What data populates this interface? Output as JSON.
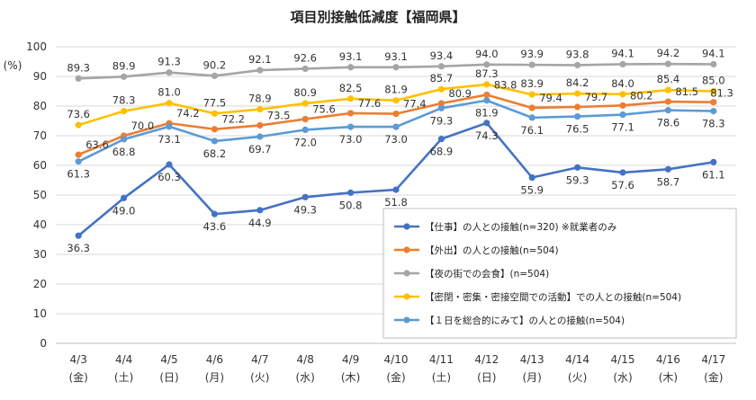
{
  "chart_data": {
    "type": "line",
    "title": "項目別接触低減度【福岡県】",
    "ylabel": "(%)",
    "ylim": [
      0,
      100
    ],
    "yticks": [
      0,
      10,
      20,
      30,
      40,
      50,
      60,
      70,
      80,
      90,
      100
    ],
    "grid": true,
    "legend_position": "right",
    "categories": [
      "4/3",
      "4/4",
      "4/5",
      "4/6",
      "4/7",
      "4/8",
      "4/9",
      "4/10",
      "4/11",
      "4/12",
      "4/13",
      "4/14",
      "4/15",
      "4/16",
      "4/17"
    ],
    "weekdays": [
      "(金)",
      "(土)",
      "(日)",
      "(月)",
      "(火)",
      "(水)",
      "(木)",
      "(金)",
      "(土)",
      "(日)",
      "(月)",
      "(火)",
      "(水)",
      "(木)",
      "(金)"
    ],
    "series": [
      {
        "name": "【仕事】の人との接触(n=320) ※就業者のみ",
        "color": "#4472C4",
        "label_position": "below",
        "values": [
          36.3,
          49.0,
          60.3,
          43.6,
          44.9,
          49.3,
          50.8,
          51.8,
          68.9,
          74.3,
          55.9,
          59.3,
          57.6,
          58.7,
          61.1
        ]
      },
      {
        "name": "【外出】の人との接触(n=504)",
        "color": "#ED7D31",
        "label_position": "right",
        "values": [
          63.6,
          70.0,
          74.2,
          72.2,
          73.5,
          75.6,
          77.6,
          77.4,
          80.9,
          83.8,
          79.4,
          79.7,
          80.2,
          81.5,
          81.3
        ]
      },
      {
        "name": "【夜の街での会食】(n=504)",
        "color": "#A5A5A5",
        "label_position": "above",
        "values": [
          89.3,
          89.9,
          91.3,
          90.2,
          92.1,
          92.6,
          93.1,
          93.1,
          93.4,
          94.0,
          93.9,
          93.8,
          94.1,
          94.2,
          94.1
        ]
      },
      {
        "name": "【密閉・密集・密接空間での活動】での人との接触(n=504)",
        "color": "#FFC000",
        "label_position": "above",
        "values": [
          73.6,
          78.3,
          81.0,
          77.5,
          78.9,
          80.9,
          82.5,
          81.9,
          85.7,
          87.3,
          83.9,
          84.2,
          84.0,
          85.4,
          85.0
        ]
      },
      {
        "name": "【１日を総合的にみて】の人との接触(n=504)",
        "color": "#5B9BD5",
        "label_position": "below",
        "values": [
          61.3,
          68.8,
          73.1,
          68.2,
          69.7,
          72.0,
          73.0,
          73.0,
          79.3,
          81.9,
          76.1,
          76.5,
          77.1,
          78.6,
          78.3
        ]
      }
    ]
  }
}
